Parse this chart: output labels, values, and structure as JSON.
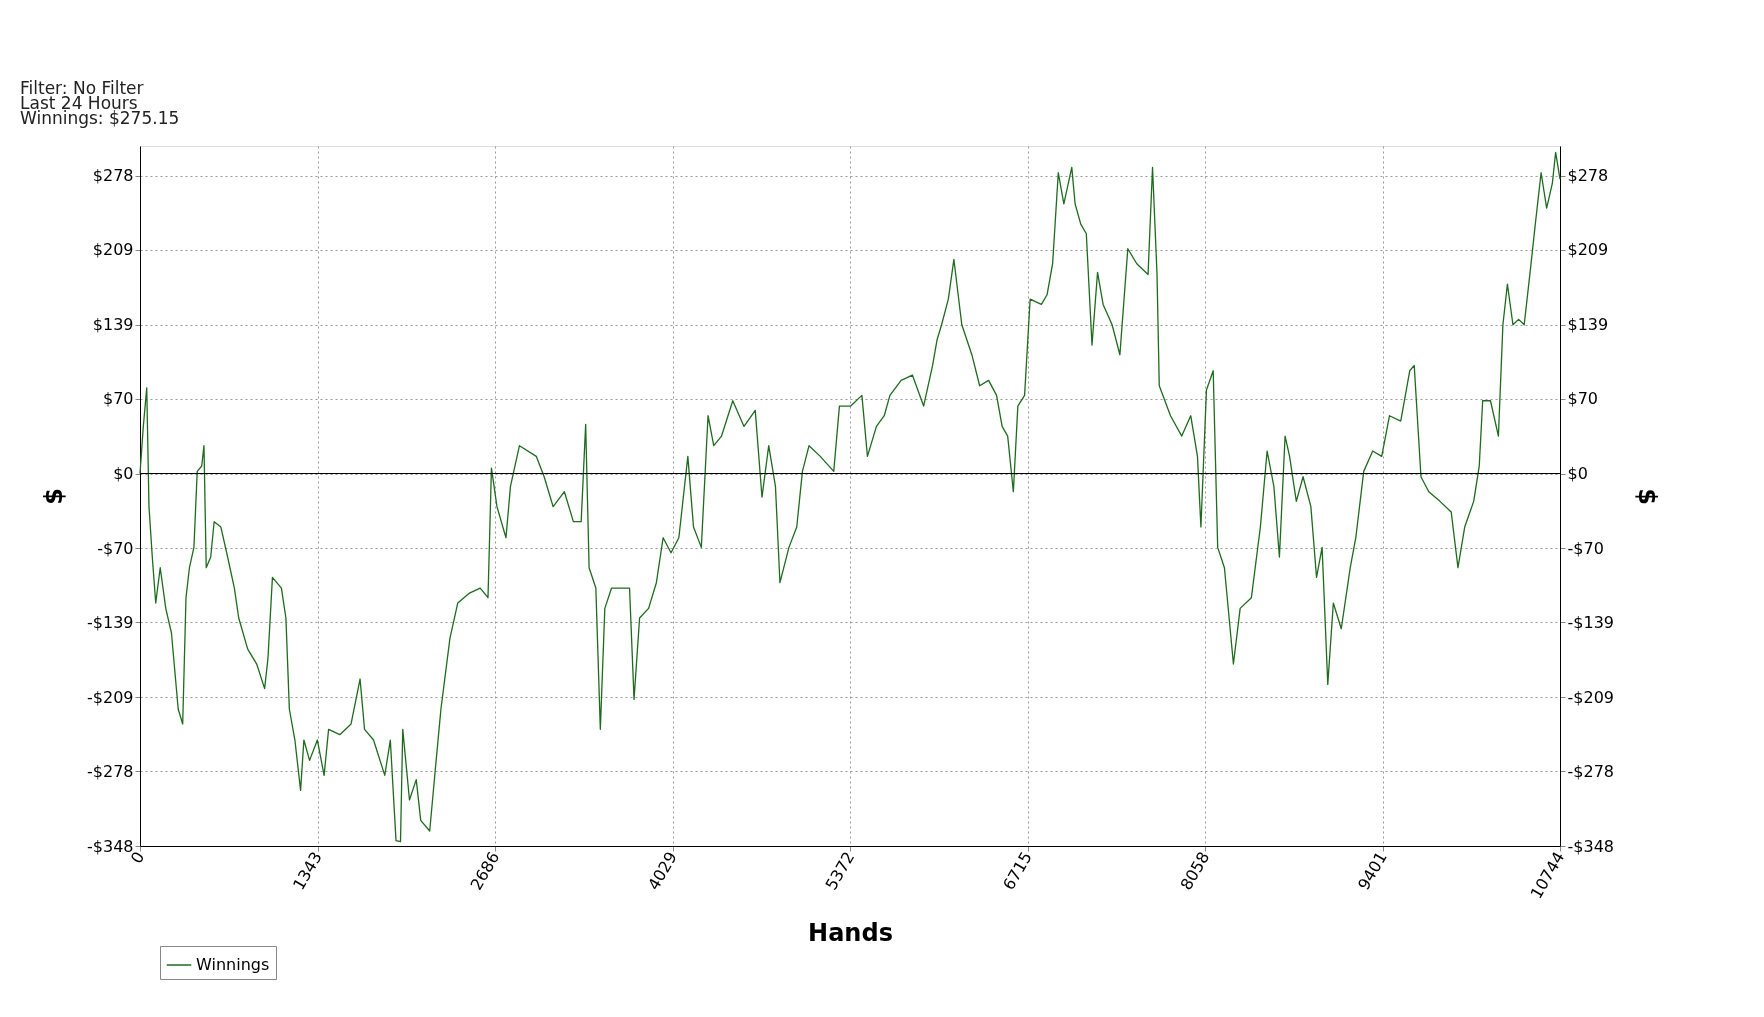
{
  "chart_data": {
    "type": "line",
    "xlabel": "Hands",
    "ylabel": "$",
    "y2label": "$",
    "annotations": [
      "Filter: No Filter",
      "Last  24 Hours",
      "Winnings: $275.15"
    ],
    "xlim": [
      0,
      10744
    ],
    "xticks": [
      0,
      1343,
      2686,
      4029,
      5372,
      6715,
      8058,
      9401,
      10744
    ],
    "ylim": [
      -348,
      306
    ],
    "yticks": [
      {
        "value": -348,
        "label": "-$348"
      },
      {
        "value": -278,
        "label": "-$278"
      },
      {
        "value": -209,
        "label": "-$209"
      },
      {
        "value": -139,
        "label": "-$139"
      },
      {
        "value": -70,
        "label": "-$70"
      },
      {
        "value": 0,
        "label": "$0"
      },
      {
        "value": 70,
        "label": "$70"
      },
      {
        "value": 139,
        "label": "$139"
      },
      {
        "value": 209,
        "label": "$209"
      },
      {
        "value": 278,
        "label": "$278"
      }
    ],
    "y2lim": [
      -348,
      306
    ],
    "y2ticks": [
      {
        "value": -348,
        "label": "-$348"
      },
      {
        "value": -278,
        "label": "-$278"
      },
      {
        "value": -209,
        "label": "-$209"
      },
      {
        "value": -139,
        "label": "-$139"
      },
      {
        "value": -70,
        "label": "-$70"
      },
      {
        "value": 0,
        "label": "$0"
      },
      {
        "value": 70,
        "label": "$70"
      },
      {
        "value": 139,
        "label": "$139"
      },
      {
        "value": 209,
        "label": "$209"
      },
      {
        "value": 278,
        "label": "$278"
      }
    ],
    "grid": true,
    "legend": "bottom left",
    "ref_lines": [
      {
        "axis": "y",
        "value": 0,
        "color": "#000000"
      }
    ],
    "x": [
      0,
      25,
      51,
      68,
      93,
      119,
      153,
      195,
      238,
      289,
      323,
      348,
      374,
      408,
      433,
      467,
      484,
      501,
      535,
      561,
      612,
      663,
      714,
      747,
      815,
      883,
      943,
      968,
      1002,
      1070,
      1104,
      1130,
      1172,
      1215,
      1240,
      1283,
      1342,
      1393,
      1427,
      1512,
      1597,
      1665,
      1699,
      1767,
      1852,
      1894,
      1937,
      1971,
      1988,
      2039,
      2090,
      2124,
      2192,
      2234,
      2277,
      2345,
      2404,
      2489,
      2574,
      2633,
      2659,
      2701,
      2769,
      2803,
      2871,
      2999,
      3058,
      3126,
      3211,
      3279,
      3338,
      3372,
      3398,
      3449,
      3483,
      3517,
      3568,
      3636,
      3704,
      3738,
      3780,
      3848,
      3907,
      3958,
      4018,
      4077,
      4145,
      4188,
      4247,
      4298,
      4341,
      4400,
      4485,
      4570,
      4655,
      4706,
      4757,
      4808,
      4842,
      4910,
      4969,
      5012,
      5062,
      5147,
      5249,
      5292,
      5377,
      5462,
      5504,
      5572,
      5631,
      5674,
      5759,
      5844,
      5929,
      5997,
      6031,
      6065,
      6116,
      6158,
      6218,
      6294,
      6353,
      6421,
      6481,
      6523,
      6565,
      6608,
      6642,
      6693,
      6735,
      6820,
      6863,
      6905,
      6948,
      6990,
      7050,
      7075,
      7118,
      7160,
      7203,
      7245,
      7287,
      7355,
      7414,
      7474,
      7542,
      7627,
      7661,
      7695,
      7712,
      7797,
      7882,
      7950,
      8001,
      8027,
      8069,
      8120,
      8154,
      8205,
      8273,
      8324,
      8409,
      8477,
      8528,
      8579,
      8621,
      8664,
      8698,
      8749,
      8800,
      8859,
      8902,
      8944,
      8987,
      9029,
      9089,
      9157,
      9199,
      9259,
      9327,
      9395,
      9454,
      9539,
      9607,
      9641,
      9692,
      9751,
      9836,
      9921,
      9972,
      10023,
      10091,
      10133,
      10159,
      10218,
      10278,
      10312,
      10346,
      10388,
      10431,
      10473,
      10516,
      10558,
      10601,
      10643,
      10686,
      10711,
      10744
    ],
    "series": [
      {
        "name": "Winnings",
        "color": "#1e6b1e",
        "values": [
          0,
          44,
          80,
          -31,
          -78,
          -121,
          -88,
          -126,
          -149,
          -220,
          -234,
          -116,
          -88,
          -69,
          2,
          7,
          26,
          -88,
          -78,
          -45,
          -50,
          -78,
          -107,
          -135,
          -164,
          -178,
          -201,
          -173,
          -97,
          -107,
          -135,
          -220,
          -249,
          -296,
          -249,
          -268,
          -249,
          -282,
          -239,
          -244,
          -234,
          -192,
          -239,
          -249,
          -282,
          -249,
          -343,
          -344,
          -239,
          -305,
          -286,
          -324,
          -334,
          -277,
          -220,
          -154,
          -121,
          -112,
          -107,
          -116,
          5,
          -31,
          -60,
          -12,
          26,
          16,
          -3,
          -31,
          -17,
          -45,
          -45,
          46,
          -88,
          -107,
          -239,
          -126,
          -107,
          -107,
          -107,
          -211,
          -135,
          -126,
          -102,
          -60,
          -74,
          -60,
          16,
          -50,
          -69,
          54,
          26,
          35,
          68,
          44,
          59,
          -22,
          26,
          -12,
          -102,
          -69,
          -50,
          2,
          26,
          16,
          2,
          63,
          63,
          73,
          16,
          44,
          54,
          73,
          87,
          92,
          63,
          101,
          125,
          139,
          163,
          200,
          139,
          111,
          82,
          87,
          73,
          44,
          35,
          -17,
          63,
          73,
          163,
          158,
          167,
          196,
          281,
          252,
          286,
          252,
          233,
          224,
          120,
          188,
          158,
          139,
          111,
          210,
          196,
          186,
          286,
          186,
          82,
          54,
          35,
          54,
          16,
          -50,
          78,
          96,
          -69,
          -88,
          -178,
          -126,
          -116,
          -50,
          21,
          -12,
          -78,
          35,
          16,
          -26,
          -3,
          -31,
          -97,
          -69,
          -197,
          -121,
          -145,
          -88,
          -60,
          2,
          21,
          16,
          54,
          49,
          96,
          101,
          -3,
          -17,
          -26,
          -36,
          -88,
          -50,
          -26,
          7,
          68,
          68,
          35,
          139,
          177,
          139,
          144,
          139,
          186,
          234,
          281,
          248,
          271,
          300,
          275
        ]
      }
    ]
  }
}
